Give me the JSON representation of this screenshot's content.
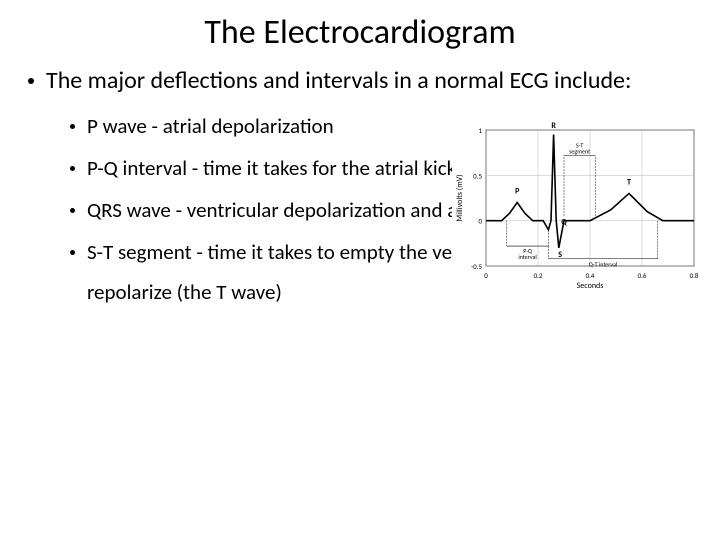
{
  "title": "The Electrocardiogram",
  "main_bullet": "The major deflections and intervals in a normal ECG include:",
  "sub_bullets": [
    "P wave - atrial depolarization",
    "P-Q interval - time it takes for the atrial kick to fill the ventricles",
    "QRS wave - ventricular depolarization and atrial repolarization",
    "S-T segment - time it takes to empty the ventricles before they repolarize (the T wave)"
  ],
  "ecg_chart": {
    "type": "line",
    "xlabel": "Seconds",
    "ylabel": "Millivolts (mV)",
    "xlim": [
      0,
      0.8
    ],
    "ylim": [
      -0.5,
      1.0
    ],
    "xticks": [
      0,
      0.2,
      0.4,
      0.6,
      0.8
    ],
    "yticks": [
      -0.5,
      0,
      0.5,
      1.0
    ],
    "grid_color": "#b8b8b8",
    "background_color": "#ffffff",
    "line_color": "#000000",
    "line_width": 1.6,
    "label_fontsize": 8,
    "tick_fontsize": 7,
    "wave_labels": [
      "P",
      "Q",
      "R",
      "S",
      "T"
    ],
    "annotations": [
      "S-T segment",
      "P-Q interval",
      "Q-T interval"
    ],
    "waveform_points": [
      [
        0.0,
        0.0
      ],
      [
        0.06,
        0.0
      ],
      [
        0.09,
        0.08
      ],
      [
        0.12,
        0.2
      ],
      [
        0.15,
        0.08
      ],
      [
        0.18,
        0.0
      ],
      [
        0.22,
        0.0
      ],
      [
        0.24,
        -0.1
      ],
      [
        0.25,
        0.0
      ],
      [
        0.26,
        0.95
      ],
      [
        0.27,
        0.0
      ],
      [
        0.28,
        -0.3
      ],
      [
        0.3,
        0.0
      ],
      [
        0.4,
        0.0
      ],
      [
        0.48,
        0.12
      ],
      [
        0.55,
        0.3
      ],
      [
        0.62,
        0.1
      ],
      [
        0.68,
        0.0
      ],
      [
        0.8,
        0.0
      ]
    ]
  }
}
